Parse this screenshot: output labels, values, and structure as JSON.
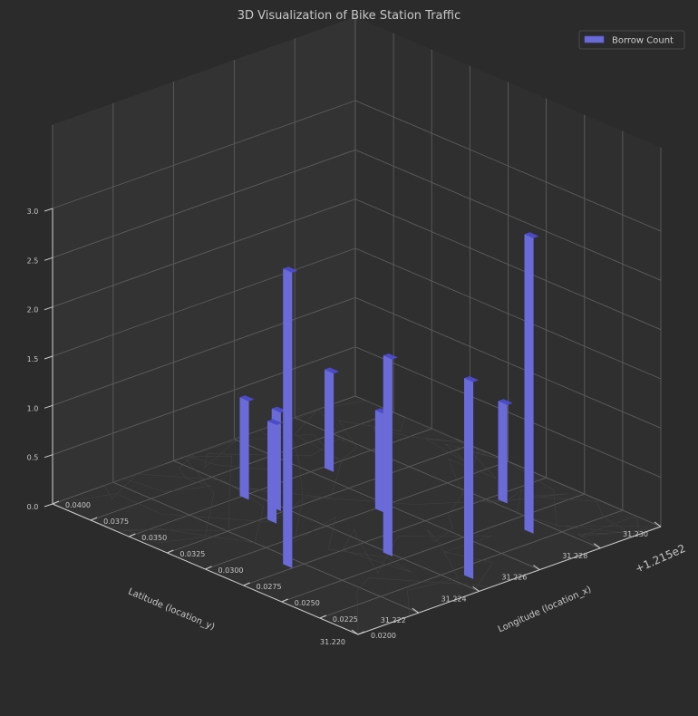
{
  "chart_data": {
    "type": "bar3d",
    "title": "3D Visualization of Bike Station Traffic",
    "xlabel": "Longitude (location_x)",
    "ylabel": "Latitude (location_y)",
    "x_offset_label": "+1.215e2",
    "x_ticks": [
      "0.0200",
      "0.0225",
      "0.0250",
      "0.0275",
      "0.0300",
      "0.0325",
      "0.0350",
      "0.0375",
      "0.0400"
    ],
    "y_ticks": [
      "31.220",
      "31.222",
      "31.224",
      "31.226",
      "31.228",
      "31.230"
    ],
    "z_ticks": [
      "0.0",
      "0.5",
      "1.0",
      "1.5",
      "2.0",
      "2.5",
      "3.0"
    ],
    "xlim": [
      0.02,
      0.04
    ],
    "ylim": [
      31.22,
      31.23
    ],
    "zlim": [
      0,
      3.0
    ],
    "legend": {
      "position": "top-right",
      "entries": [
        "Borrow Count"
      ]
    },
    "grid": true,
    "bar_color": "#6a6ad8",
    "bars": [
      {
        "x": 0.0278,
        "y": 31.2217,
        "z": 3
      },
      {
        "x": 0.0258,
        "y": 31.224,
        "z": 2
      },
      {
        "x": 0.0235,
        "y": 31.2275,
        "z": 3
      },
      {
        "x": 0.0215,
        "y": 31.2245,
        "z": 2
      },
      {
        "x": 0.0268,
        "y": 31.2283,
        "z": 1
      },
      {
        "x": 0.0297,
        "y": 31.2257,
        "z": 1
      },
      {
        "x": 0.032,
        "y": 31.2233,
        "z": 1
      },
      {
        "x": 0.0329,
        "y": 31.2239,
        "z": 1
      },
      {
        "x": 0.0348,
        "y": 31.2238,
        "z": 1
      },
      {
        "x": 0.0346,
        "y": 31.2265,
        "z": 1
      }
    ]
  }
}
